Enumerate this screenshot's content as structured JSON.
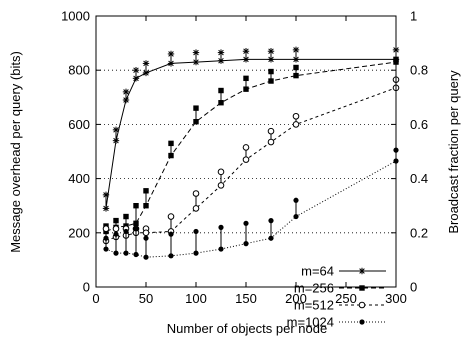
{
  "chart_data": {
    "type": "line",
    "xlabel": "Number of objects per node",
    "ylabel": "Message overhead per query (bits)",
    "y2label": "Broadcast fraction per query",
    "xlim": [
      0,
      300
    ],
    "ylim": [
      0,
      1000
    ],
    "y2lim": [
      0,
      1
    ],
    "x_ticks": [
      "0",
      "50",
      "100",
      "150",
      "200",
      "250",
      "300"
    ],
    "y_ticks": [
      "0",
      "200",
      "400",
      "600",
      "800",
      "1000"
    ],
    "y2_ticks": [
      "0",
      "0.2",
      "0.4",
      "0.6",
      "0.8",
      "1"
    ],
    "grid": "horizontal dotted",
    "legend_position": "bottom-right",
    "series": [
      {
        "name": "m=64",
        "marker": "asterisk",
        "line": "solid",
        "x": [
          10,
          20,
          30,
          40,
          50,
          75,
          100,
          125,
          150,
          175,
          200,
          300
        ],
        "upper": [
          340,
          580,
          720,
          800,
          825,
          860,
          865,
          865,
          870,
          870,
          875,
          875
        ],
        "lower": [
          290,
          540,
          690,
          770,
          790,
          825,
          830,
          835,
          840,
          840,
          840,
          840
        ],
        "curve_y": [
          290,
          540,
          690,
          770,
          790,
          825,
          830,
          835,
          840,
          840,
          840,
          840
        ]
      },
      {
        "name": "m=256",
        "marker": "filled-square",
        "line": "dashed",
        "x": [
          10,
          20,
          30,
          40,
          50,
          75,
          100,
          125,
          150,
          175,
          200,
          300
        ],
        "upper": [
          225,
          245,
          260,
          300,
          355,
          530,
          660,
          725,
          770,
          795,
          810,
          840
        ],
        "lower": [
          205,
          220,
          225,
          235,
          300,
          485,
          610,
          680,
          730,
          760,
          780,
          830
        ],
        "curve_y": [
          205,
          220,
          225,
          235,
          300,
          485,
          610,
          680,
          730,
          760,
          780,
          830
        ]
      },
      {
        "name": "m=512",
        "marker": "open-circle",
        "line": "dotted",
        "x": [
          10,
          20,
          30,
          40,
          50,
          75,
          100,
          125,
          150,
          175,
          200,
          300
        ],
        "upper": [
          215,
          215,
          215,
          215,
          215,
          260,
          345,
          425,
          515,
          575,
          630,
          765
        ],
        "lower": [
          170,
          185,
          190,
          200,
          200,
          205,
          290,
          375,
          470,
          535,
          600,
          735
        ],
        "curve_y": [
          170,
          185,
          190,
          200,
          200,
          205,
          290,
          375,
          470,
          535,
          600,
          735
        ]
      },
      {
        "name": "m=1024",
        "marker": "filled-circle",
        "line": "fine-dotted",
        "x": [
          10,
          20,
          30,
          40,
          50,
          75,
          100,
          125,
          150,
          175,
          200,
          300
        ],
        "upper": [
          180,
          195,
          205,
          215,
          180,
          195,
          205,
          220,
          235,
          245,
          320,
          505
        ],
        "lower": [
          140,
          125,
          125,
          120,
          110,
          115,
          125,
          140,
          160,
          180,
          260,
          465
        ],
        "curve_y": [
          140,
          125,
          125,
          120,
          110,
          115,
          125,
          140,
          160,
          180,
          260,
          465
        ]
      }
    ]
  }
}
